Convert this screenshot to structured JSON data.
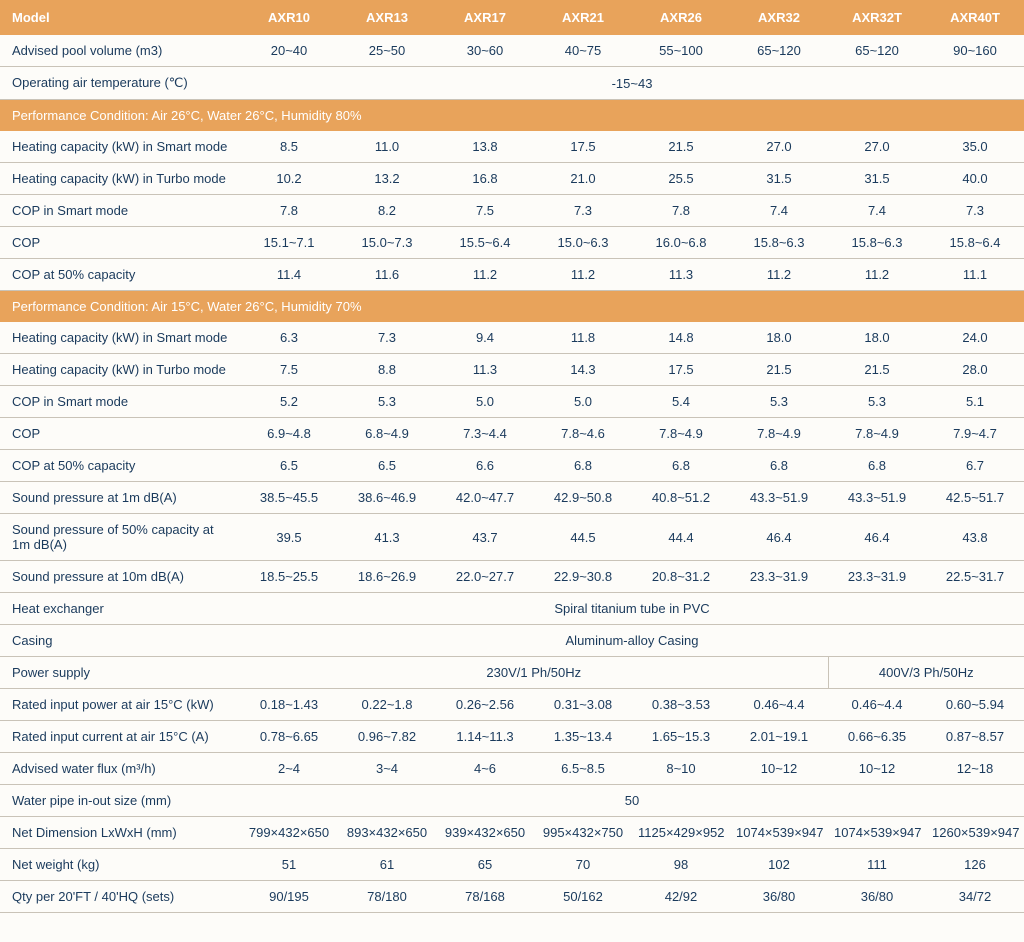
{
  "colors": {
    "header_bg": "#e8a35b",
    "header_fg": "#ffffff",
    "text": "#1a3a5c",
    "border": "#c9c3b8",
    "page_bg": "#fdfcf9"
  },
  "header": {
    "label": "Model",
    "cols": [
      "AXR10",
      "AXR13",
      "AXR17",
      "AXR21",
      "AXR26",
      "AXR32",
      "AXR32T",
      "AXR40T"
    ]
  },
  "rows": [
    {
      "type": "data",
      "label": "Advised pool volume  (m3)",
      "cells": [
        "20~40",
        "25~50",
        "30~60",
        "40~75",
        "55~100",
        "65~120",
        "65~120",
        "90~160"
      ]
    },
    {
      "type": "span",
      "label": "Operating air temperature (℃)",
      "span_value": "-15~43",
      "span_cols": 8
    },
    {
      "type": "section",
      "label": "Performance Condition: Air 26°C, Water 26°C, Humidity 80%"
    },
    {
      "type": "data",
      "label": "Heating capacity  (kW)  in Smart mode",
      "cells": [
        "8.5",
        "11.0",
        "13.8",
        "17.5",
        "21.5",
        "27.0",
        "27.0",
        "35.0"
      ]
    },
    {
      "type": "data",
      "label": "Heating capacity  (kW)  in Turbo mode",
      "cells": [
        "10.2",
        "13.2",
        "16.8",
        "21.0",
        "25.5",
        "31.5",
        "31.5",
        "40.0"
      ]
    },
    {
      "type": "data",
      "label": "COP in Smart mode",
      "cells": [
        "7.8",
        "8.2",
        "7.5",
        "7.3",
        "7.8",
        "7.4",
        "7.4",
        "7.3"
      ]
    },
    {
      "type": "data",
      "label": "COP",
      "cells": [
        "15.1~7.1",
        "15.0~7.3",
        "15.5~6.4",
        "15.0~6.3",
        "16.0~6.8",
        "15.8~6.3",
        "15.8~6.3",
        "15.8~6.4"
      ]
    },
    {
      "type": "data",
      "label": "COP at 50% capacity",
      "cells": [
        "11.4",
        "11.6",
        "11.2",
        "11.2",
        "11.3",
        "11.2",
        "11.2",
        "11.1"
      ]
    },
    {
      "type": "section",
      "label": "Performance Condition: Air 15°C, Water 26°C, Humidity 70%"
    },
    {
      "type": "data",
      "label": "Heating capacity  (kW)  in Smart mode",
      "cells": [
        "6.3",
        "7.3",
        "9.4",
        "11.8",
        "14.8",
        "18.0",
        "18.0",
        "24.0"
      ]
    },
    {
      "type": "data",
      "label": "Heating capacity  (kW)  in Turbo mode",
      "cells": [
        "7.5",
        "8.8",
        "11.3",
        "14.3",
        "17.5",
        "21.5",
        "21.5",
        "28.0"
      ]
    },
    {
      "type": "data",
      "label": "COP in Smart mode",
      "cells": [
        "5.2",
        "5.3",
        "5.0",
        "5.0",
        "5.4",
        "5.3",
        "5.3",
        "5.1"
      ]
    },
    {
      "type": "data",
      "label": "COP",
      "cells": [
        "6.9~4.8",
        "6.8~4.9",
        "7.3~4.4",
        "7.8~4.6",
        "7.8~4.9",
        "7.8~4.9",
        "7.8~4.9",
        "7.9~4.7"
      ]
    },
    {
      "type": "data",
      "label": "COP at 50% capacity",
      "cells": [
        "6.5",
        "6.5",
        "6.6",
        "6.8",
        "6.8",
        "6.8",
        "6.8",
        "6.7"
      ]
    },
    {
      "type": "data",
      "label": "Sound pressure at 1m dB(A)",
      "cells": [
        "38.5~45.5",
        "38.6~46.9",
        "42.0~47.7",
        "42.9~50.8",
        "40.8~51.2",
        "43.3~51.9",
        "43.3~51.9",
        "42.5~51.7"
      ]
    },
    {
      "type": "data",
      "label": "Sound pressure of 50% capacity at 1m dB(A)",
      "cells": [
        "39.5",
        "41.3",
        "43.7",
        "44.5",
        "44.4",
        "46.4",
        "46.4",
        "43.8"
      ]
    },
    {
      "type": "data",
      "label": "Sound pressure at 10m dB(A)",
      "cells": [
        "18.5~25.5",
        "18.6~26.9",
        "22.0~27.7",
        "22.9~30.8",
        "20.8~31.2",
        "23.3~31.9",
        "23.3~31.9",
        "22.5~31.7"
      ]
    },
    {
      "type": "span",
      "label": "Heat exchanger",
      "span_value": "Spiral titanium tube in PVC",
      "span_cols": 8
    },
    {
      "type": "span",
      "label": "Casing",
      "span_value": "Aluminum-alloy Casing",
      "span_cols": 8
    },
    {
      "type": "multispan",
      "label": "Power supply",
      "spans": [
        {
          "value": "230V/1 Ph/50Hz",
          "cols": 6
        },
        {
          "value": "400V/3 Ph/50Hz",
          "cols": 2,
          "border": true
        }
      ]
    },
    {
      "type": "data",
      "label": "Rated input power  at air 15°C (kW)",
      "cells": [
        "0.18~1.43",
        "0.22~1.8",
        "0.26~2.56",
        "0.31~3.08",
        "0.38~3.53",
        "0.46~4.4",
        "0.46~4.4",
        "0.60~5.94"
      ]
    },
    {
      "type": "data",
      "label": "Rated input current  at air 15°C  (A)",
      "cells": [
        "0.78~6.65",
        "0.96~7.82",
        "1.14~11.3",
        "1.35~13.4",
        "1.65~15.3",
        "2.01~19.1",
        "0.66~6.35",
        "0.87~8.57"
      ]
    },
    {
      "type": "data",
      "label": "Advised water flux   (m³/h)",
      "cells": [
        "2~4",
        "3~4",
        "4~6",
        "6.5~8.5",
        "8~10",
        "10~12",
        "10~12",
        "12~18"
      ]
    },
    {
      "type": "span",
      "label": "Water pipe in-out size   (mm)",
      "span_value": "50",
      "span_cols": 8
    },
    {
      "type": "data",
      "label": "Net Dimension LxWxH (mm)",
      "cells": [
        "799×432×650",
        "893×432×650",
        "939×432×650",
        "995×432×750",
        "1125×429×952",
        "1074×539×947",
        "1074×539×947",
        "1260×539×947"
      ]
    },
    {
      "type": "data",
      "label": "Net weight    (kg)",
      "cells": [
        "51",
        "61",
        "65",
        "70",
        "98",
        "102",
        "111",
        "126"
      ]
    },
    {
      "type": "data",
      "label": "Qty per 20'FT / 40'HQ    (sets)",
      "cells": [
        "90/195",
        "78/180",
        "78/168",
        "50/162",
        "42/92",
        "36/80",
        "36/80",
        "34/72"
      ]
    }
  ]
}
